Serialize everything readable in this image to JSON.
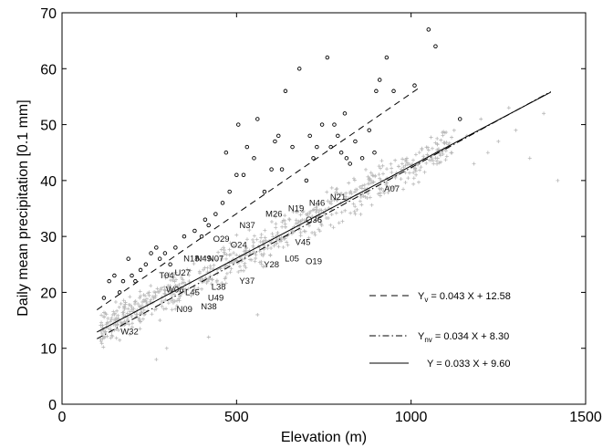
{
  "chart_data": {
    "type": "scatter",
    "title": "",
    "xlabel": "Elevation (m)",
    "ylabel": "Daily mean precipitation [0.1 mm]",
    "xlim": [
      0,
      1500
    ],
    "ylim": [
      0,
      70
    ],
    "xticks": [
      "0",
      "500",
      "1000",
      "1500"
    ],
    "yticks": [
      "0",
      "10",
      "20",
      "30",
      "40",
      "50",
      "60",
      "70"
    ],
    "grid": false,
    "legend_position": "bottom-right",
    "legend": [
      {
        "text": "Y",
        "sub": "v",
        "rest": " = 0.043 X + 12.58",
        "style": "dashed"
      },
      {
        "text": "Y",
        "sub": "nv",
        "rest": " = 0.034 X + 8.30",
        "style": "dashdot"
      },
      {
        "text": "Y",
        "sub": "",
        "rest": " = 0.033 X + 9.60",
        "style": "solid"
      }
    ],
    "fits": [
      {
        "slope": 0.043,
        "intercept": 12.58,
        "x": [
          100,
          1020
        ],
        "style": "dashed"
      },
      {
        "slope": 0.034,
        "intercept": 8.3,
        "x": [
          100,
          1400
        ],
        "style": "dashdot"
      },
      {
        "slope": 0.033,
        "intercept": 9.6,
        "x": [
          100,
          1400
        ],
        "style": "solid"
      }
    ],
    "series": [
      {
        "marker": "circle",
        "points": [
          [
            120,
            19
          ],
          [
            135,
            22
          ],
          [
            150,
            23
          ],
          [
            165,
            20
          ],
          [
            175,
            22
          ],
          [
            190,
            26
          ],
          [
            200,
            23
          ],
          [
            210,
            22
          ],
          [
            225,
            24
          ],
          [
            240,
            25
          ],
          [
            255,
            27
          ],
          [
            270,
            28
          ],
          [
            280,
            26
          ],
          [
            295,
            27
          ],
          [
            310,
            25
          ],
          [
            325,
            28
          ],
          [
            350,
            30
          ],
          [
            380,
            31
          ],
          [
            400,
            30
          ],
          [
            410,
            33
          ],
          [
            420,
            32
          ],
          [
            440,
            34
          ],
          [
            460,
            36
          ],
          [
            470,
            45
          ],
          [
            480,
            38
          ],
          [
            500,
            41
          ],
          [
            505,
            50
          ],
          [
            520,
            41
          ],
          [
            530,
            46
          ],
          [
            550,
            44
          ],
          [
            560,
            51
          ],
          [
            580,
            38
          ],
          [
            600,
            42
          ],
          [
            610,
            47
          ],
          [
            620,
            48
          ],
          [
            630,
            42
          ],
          [
            640,
            56
          ],
          [
            660,
            46
          ],
          [
            680,
            60
          ],
          [
            700,
            40
          ],
          [
            710,
            48
          ],
          [
            720,
            44
          ],
          [
            730,
            46
          ],
          [
            745,
            50
          ],
          [
            760,
            62
          ],
          [
            770,
            46
          ],
          [
            780,
            50
          ],
          [
            790,
            48
          ],
          [
            800,
            45
          ],
          [
            810,
            52
          ],
          [
            815,
            44
          ],
          [
            825,
            43
          ],
          [
            840,
            47
          ],
          [
            860,
            44
          ],
          [
            880,
            49
          ],
          [
            895,
            45
          ],
          [
            900,
            56
          ],
          [
            910,
            58
          ],
          [
            930,
            62
          ],
          [
            950,
            56
          ],
          [
            1010,
            57
          ],
          [
            1050,
            67
          ],
          [
            1070,
            64
          ],
          [
            1140,
            51
          ]
        ]
      }
    ],
    "station_labels": [
      {
        "name": "W32",
        "x": 160,
        "y": 13
      },
      {
        "name": "T04",
        "x": 270,
        "y": 23
      },
      {
        "name": "U27",
        "x": 315,
        "y": 23.5
      },
      {
        "name": "W06",
        "x": 290,
        "y": 20.5
      },
      {
        "name": "N18",
        "x": 340,
        "y": 26
      },
      {
        "name": "N49",
        "x": 375,
        "y": 26
      },
      {
        "name": "N07",
        "x": 410,
        "y": 26
      },
      {
        "name": "L45",
        "x": 345,
        "y": 20
      },
      {
        "name": "L38",
        "x": 420,
        "y": 21
      },
      {
        "name": "U49",
        "x": 410,
        "y": 19
      },
      {
        "name": "N09",
        "x": 320,
        "y": 17
      },
      {
        "name": "N38",
        "x": 390,
        "y": 17.5
      },
      {
        "name": "Y37",
        "x": 500,
        "y": 22
      },
      {
        "name": "O29",
        "x": 425,
        "y": 29.5
      },
      {
        "name": "O24",
        "x": 475,
        "y": 28.5
      },
      {
        "name": "N37",
        "x": 500,
        "y": 32
      },
      {
        "name": "M26",
        "x": 575,
        "y": 34
      },
      {
        "name": "N19",
        "x": 640,
        "y": 35
      },
      {
        "name": "N46",
        "x": 700,
        "y": 36
      },
      {
        "name": "N21",
        "x": 760,
        "y": 37
      },
      {
        "name": "O36",
        "x": 690,
        "y": 33
      },
      {
        "name": "Y28",
        "x": 570,
        "y": 25
      },
      {
        "name": "L05",
        "x": 630,
        "y": 26
      },
      {
        "name": "V45",
        "x": 660,
        "y": 29
      },
      {
        "name": "O19",
        "x": 690,
        "y": 25.5
      },
      {
        "name": "A07",
        "x": 915,
        "y": 38.5
      }
    ],
    "background_cloud": {
      "marker": "plus",
      "color": "#b8b8b8"
    }
  }
}
